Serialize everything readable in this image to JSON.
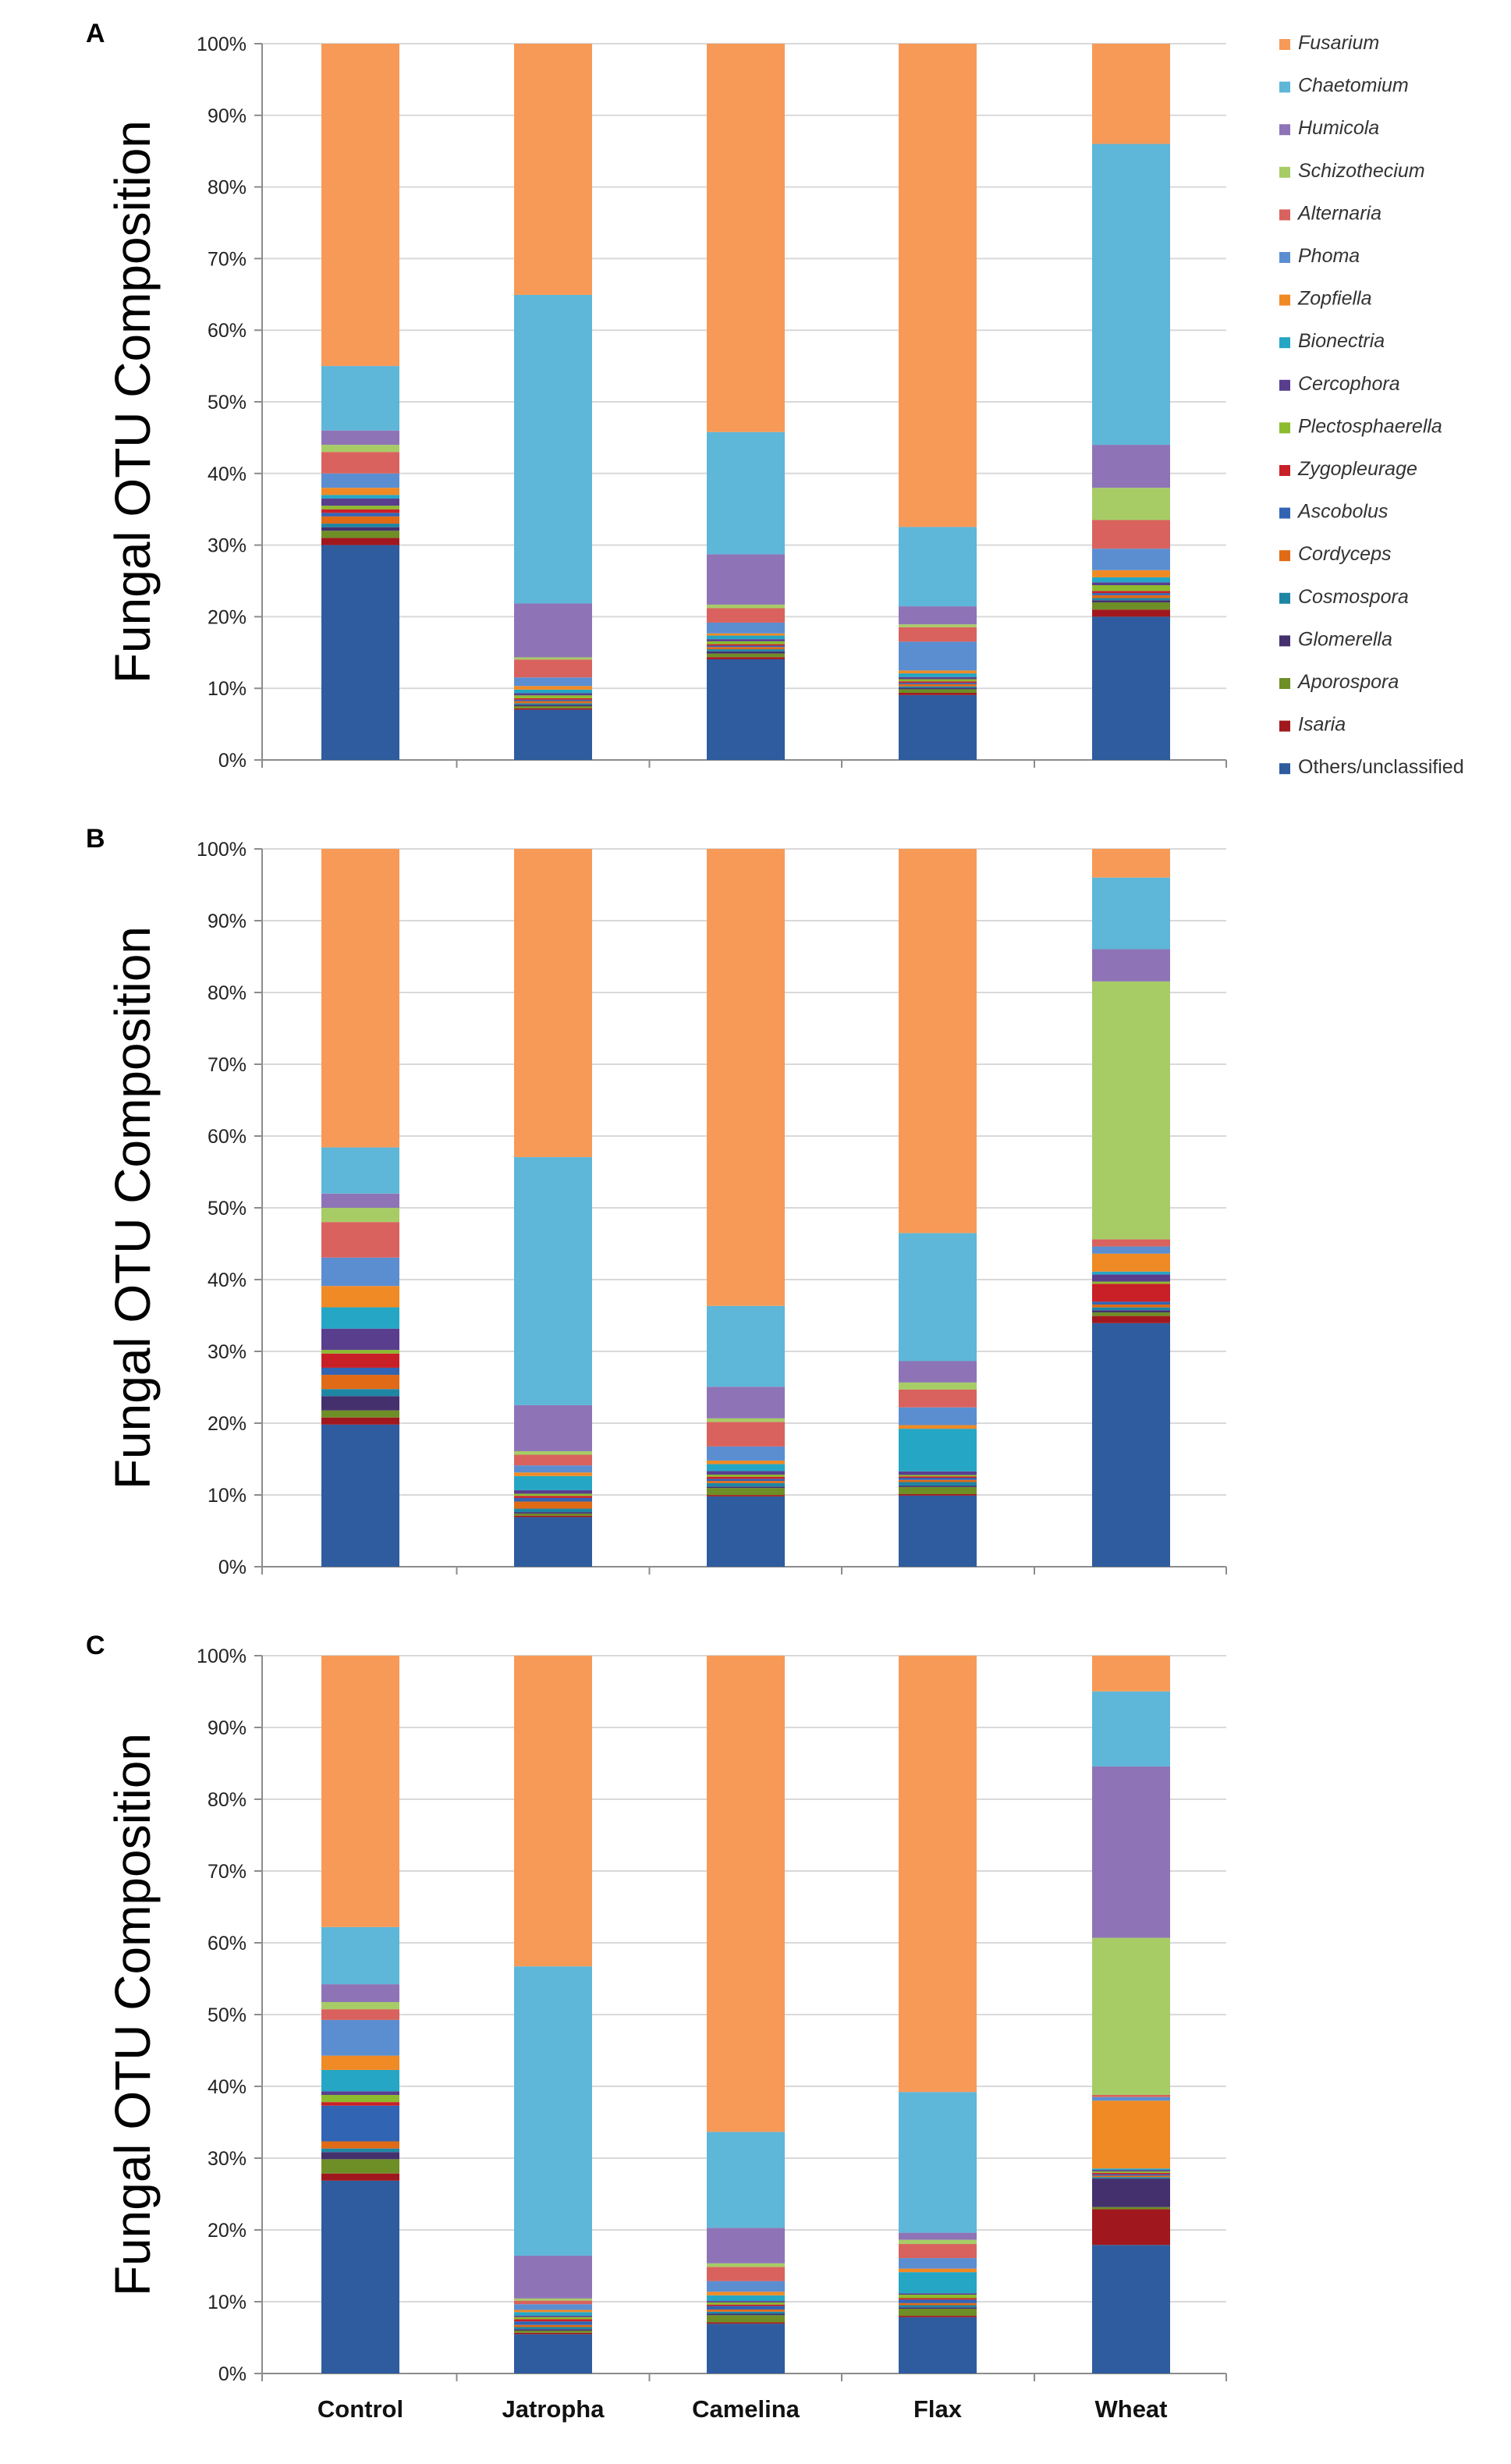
{
  "chart_data": {
    "type": "bar",
    "stacked": "percent",
    "ylabel": "Fungal OTU Composition",
    "yticks": [
      "0%",
      "10%",
      "20%",
      "30%",
      "40%",
      "50%",
      "60%",
      "70%",
      "80%",
      "90%",
      "100%"
    ],
    "ylim": [
      0,
      100
    ],
    "categories": [
      "Control",
      "Jatropha",
      "Camelina",
      "Flax",
      "Wheat"
    ],
    "legend": [
      {
        "name": "Fusarium",
        "color": "#F79A57"
      },
      {
        "name": "Chaetomium",
        "color": "#5EB6D8"
      },
      {
        "name": "Humicola",
        "color": "#8E74B6"
      },
      {
        "name": "Schizothecium",
        "color": "#A7CC66"
      },
      {
        "name": "Alternaria",
        "color": "#D9625E"
      },
      {
        "name": "Phoma",
        "color": "#5B8ED1"
      },
      {
        "name": "Zopfiella",
        "color": "#F08A24"
      },
      {
        "name": "Bionectria",
        "color": "#25A6C4"
      },
      {
        "name": "Cercophora",
        "color": "#5A3E8E"
      },
      {
        "name": "Plectosphaerella",
        "color": "#8DBB2E"
      },
      {
        "name": "Zygopleurage",
        "color": "#C92027"
      },
      {
        "name": "Ascobolus",
        "color": "#3264B4"
      },
      {
        "name": "Cordyceps",
        "color": "#E06A16"
      },
      {
        "name": "Cosmospora",
        "color": "#1E86A4"
      },
      {
        "name": "Glomerella",
        "color": "#45306E"
      },
      {
        "name": "Aporospora",
        "color": "#6E8E26"
      },
      {
        "name": "Isaria",
        "color": "#A0181E"
      },
      {
        "name": "Others/unclassified",
        "color": "#2E5C9E"
      }
    ],
    "panels": [
      {
        "label": "A",
        "series_order": [
          "Others/unclassified",
          "Isaria",
          "Aporospora",
          "Glomerella",
          "Cosmospora",
          "Cordyceps",
          "Ascobolus",
          "Zygopleurage",
          "Plectosphaerella",
          "Cercophora",
          "Bionectria",
          "Zopfiella",
          "Phoma",
          "Alternaria",
          "Schizothecium",
          "Humicola",
          "Chaetomium",
          "Fusarium"
        ],
        "series": [
          {
            "name": "Others/unclassified",
            "values": [
              30,
              7,
              14,
              9,
              20
            ]
          },
          {
            "name": "Isaria",
            "values": [
              1,
              0.2,
              0.3,
              0.3,
              1
            ]
          },
          {
            "name": "Aporospora",
            "values": [
              1,
              0.3,
              0.5,
              0.5,
              1
            ]
          },
          {
            "name": "Glomerella",
            "values": [
              0.5,
              0.2,
              0.3,
              0.2,
              0.3
            ]
          },
          {
            "name": "Cosmospora",
            "values": [
              0.5,
              0.2,
              0.3,
              0.2,
              0.3
            ]
          },
          {
            "name": "Cordyceps",
            "values": [
              1,
              0.3,
              0.3,
              0.3,
              0.4
            ]
          },
          {
            "name": "Ascobolus",
            "values": [
              0.5,
              0.2,
              0.2,
              0.2,
              0.3
            ]
          },
          {
            "name": "Zygopleurage",
            "values": [
              0.5,
              0.2,
              0.2,
              0.2,
              0.3
            ]
          },
          {
            "name": "Plectosphaerella",
            "values": [
              0.5,
              0.4,
              0.4,
              0.3,
              0.8
            ]
          },
          {
            "name": "Cercophora",
            "values": [
              1,
              0.3,
              0.3,
              0.3,
              0.4
            ]
          },
          {
            "name": "Bionectria",
            "values": [
              0.5,
              0.5,
              0.5,
              0.5,
              0.7
            ]
          },
          {
            "name": "Zopfiella",
            "values": [
              1,
              0.5,
              0.3,
              0.4,
              1
            ]
          },
          {
            "name": "Phoma",
            "values": [
              2,
              1.2,
              1.5,
              4,
              3
            ]
          },
          {
            "name": "Alternaria",
            "values": [
              3,
              2.5,
              2,
              2,
              4
            ]
          },
          {
            "name": "Schizothecium",
            "values": [
              1,
              0.3,
              0.5,
              0.4,
              4.5
            ]
          },
          {
            "name": "Humicola",
            "values": [
              2,
              7.5,
              7,
              2.5,
              6
            ]
          },
          {
            "name": "Chaetomium",
            "values": [
              9,
              43,
              17,
              11,
              42
            ]
          },
          {
            "name": "Fusarium",
            "values": [
              45,
              35,
              54,
              67,
              14
            ]
          }
        ]
      },
      {
        "label": "B",
        "series_order": [
          "Others/unclassified",
          "Isaria",
          "Aporospora",
          "Glomerella",
          "Cosmospora",
          "Cordyceps",
          "Ascobolus",
          "Zygopleurage",
          "Plectosphaerella",
          "Cercophora",
          "Bionectria",
          "Zopfiella",
          "Phoma",
          "Alternaria",
          "Schizothecium",
          "Humicola",
          "Chaetomium",
          "Fusarium"
        ],
        "series": [
          {
            "name": "Others/unclassified",
            "values": [
              20,
              7,
              10,
              10,
              34
            ]
          },
          {
            "name": "Isaria",
            "values": [
              1,
              0.2,
              0.2,
              0.2,
              1
            ]
          },
          {
            "name": "Aporospora",
            "values": [
              1,
              0.3,
              1,
              1,
              0.5
            ]
          },
          {
            "name": "Glomerella",
            "values": [
              2,
              0.2,
              0.2,
              0.2,
              0.3
            ]
          },
          {
            "name": "Cosmospora",
            "values": [
              1,
              0.5,
              0.5,
              0.5,
              0.4
            ]
          },
          {
            "name": "Cordyceps",
            "values": [
              2,
              1,
              0.3,
              0.3,
              0.4
            ]
          },
          {
            "name": "Ascobolus",
            "values": [
              1,
              0.5,
              0.3,
              0.3,
              0.4
            ]
          },
          {
            "name": "Zygopleurage",
            "values": [
              2,
              0.3,
              0.3,
              0.2,
              2.5
            ]
          },
          {
            "name": "Plectosphaerella",
            "values": [
              0.5,
              0.3,
              0.3,
              0.2,
              0.3
            ]
          },
          {
            "name": "Cercophora",
            "values": [
              3,
              0.5,
              0.5,
              0.5,
              1
            ]
          },
          {
            "name": "Bionectria",
            "values": [
              3,
              2,
              1,
              6,
              0.4
            ]
          },
          {
            "name": "Zopfiella",
            "values": [
              3,
              0.5,
              0.5,
              0.5,
              2.5
            ]
          },
          {
            "name": "Phoma",
            "values": [
              4,
              1,
              2,
              2.5,
              1
            ]
          },
          {
            "name": "Alternaria",
            "values": [
              5,
              1.5,
              3.5,
              2.5,
              1
            ]
          },
          {
            "name": "Schizothecium",
            "values": [
              2,
              0.5,
              0.5,
              1,
              36
            ]
          },
          {
            "name": "Humicola",
            "values": [
              2,
              6.5,
              4.5,
              3,
              4.5
            ]
          },
          {
            "name": "Chaetomium",
            "values": [
              6.5,
              35,
              11.5,
              18,
              10
            ]
          },
          {
            "name": "Fusarium",
            "values": [
              42,
              43.5,
              65,
              54,
              4
            ]
          }
        ]
      },
      {
        "label": "C",
        "series_order": [
          "Others/unclassified",
          "Isaria",
          "Aporospora",
          "Glomerella",
          "Cosmospora",
          "Cordyceps",
          "Ascobolus",
          "Zygopleurage",
          "Plectosphaerella",
          "Cercophora",
          "Bionectria",
          "Zopfiella",
          "Phoma",
          "Alternaria",
          "Schizothecium",
          "Humicola",
          "Chaetomium",
          "Fusarium"
        ],
        "series": [
          {
            "name": "Others/unclassified",
            "values": [
              27,
              5.5,
              7,
              8,
              18
            ]
          },
          {
            "name": "Isaria",
            "values": [
              1,
              0.2,
              0.2,
              0.2,
              5
            ]
          },
          {
            "name": "Aporospora",
            "values": [
              2,
              0.3,
              1,
              1,
              0.3
            ]
          },
          {
            "name": "Glomerella",
            "values": [
              1,
              0.2,
              0.2,
              0.2,
              4
            ]
          },
          {
            "name": "Cosmospora",
            "values": [
              0.5,
              0.3,
              0.3,
              0.3,
              0.2
            ]
          },
          {
            "name": "Cordyceps",
            "values": [
              1,
              0.3,
              0.3,
              0.3,
              0.2
            ]
          },
          {
            "name": "Ascobolus",
            "values": [
              5,
              0.5,
              0.5,
              0.5,
              0.2
            ]
          },
          {
            "name": "Zygopleurage",
            "values": [
              0.5,
              0.3,
              0.2,
              0.2,
              0.2
            ]
          },
          {
            "name": "Plectosphaerella",
            "values": [
              1,
              0.3,
              0.3,
              0.5,
              0.2
            ]
          },
          {
            "name": "Cercophora",
            "values": [
              0.5,
              0.2,
              0.2,
              0.2,
              0.2
            ]
          },
          {
            "name": "Bionectria",
            "values": [
              3,
              0.5,
              0.8,
              3,
              0.2
            ]
          },
          {
            "name": "Zopfiella",
            "values": [
              2,
              0.3,
              0.5,
              0.5,
              9.5
            ]
          },
          {
            "name": "Phoma",
            "values": [
              5,
              0.8,
              1.5,
              1.5,
              0.5
            ]
          },
          {
            "name": "Alternaria",
            "values": [
              1.5,
              0.5,
              2,
              2,
              0.3
            ]
          },
          {
            "name": "Schizothecium",
            "values": [
              1,
              0.3,
              0.5,
              0.6,
              22
            ]
          },
          {
            "name": "Humicola",
            "values": [
              2.5,
              6,
              5,
              1,
              24
            ]
          },
          {
            "name": "Chaetomium",
            "values": [
              8,
              40.5,
              13.5,
              20,
              10.5
            ]
          },
          {
            "name": "Fusarium",
            "values": [
              38,
              43.5,
              67,
              62,
              5
            ]
          }
        ]
      }
    ]
  }
}
